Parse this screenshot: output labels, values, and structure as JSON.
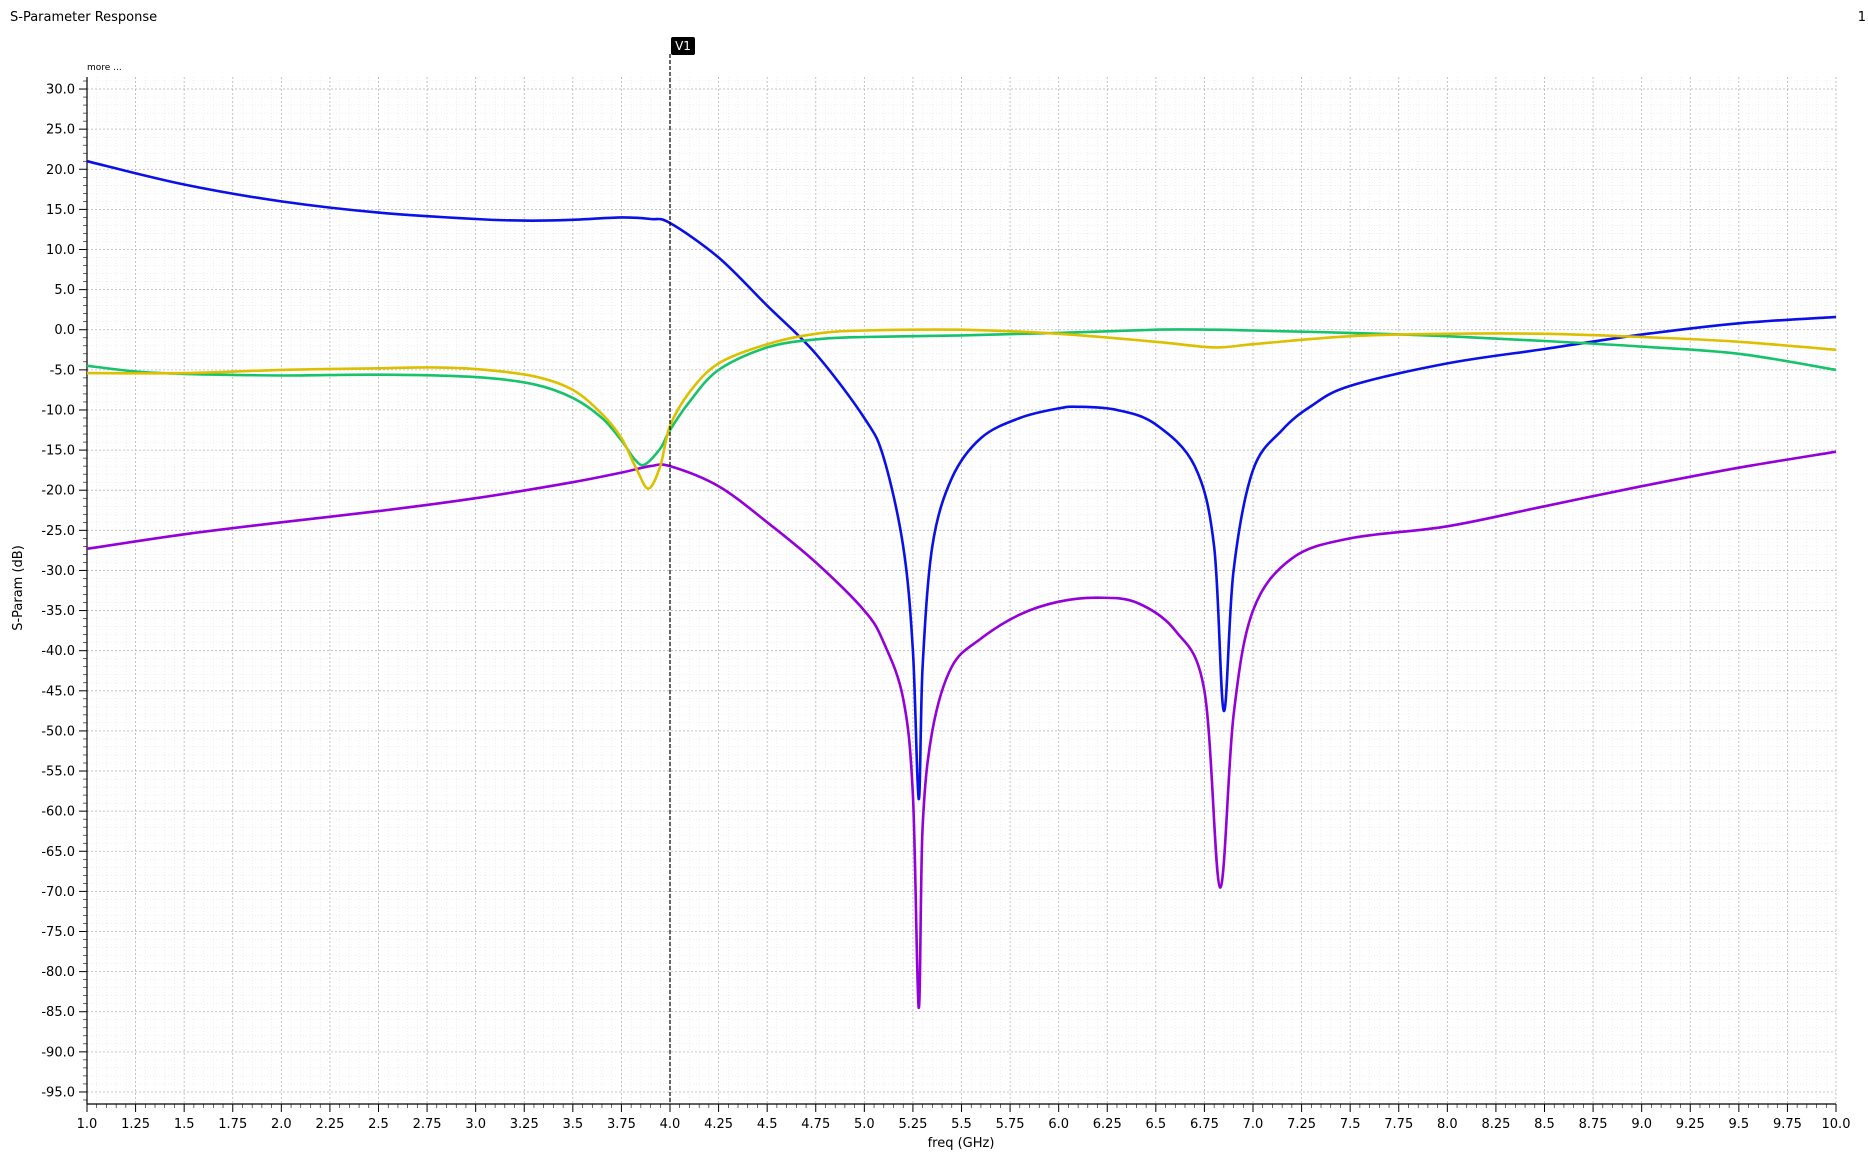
{
  "window": {
    "title": "S-Parameter Response",
    "page_number": "1"
  },
  "more_link": "more ...",
  "marker": {
    "label": "V1",
    "x": 4.0
  },
  "colors": {
    "blue": "#0a10e8",
    "purple": "#9400d9",
    "green": "#16c36a",
    "yellow": "#dcc000",
    "grid": "#b4b4b4",
    "marker": "#000000"
  },
  "chart_data": {
    "type": "line",
    "title": "S-Parameter Response",
    "xlabel": "freq (GHz)",
    "ylabel": "S-Param (dB)",
    "xlim": [
      1.0,
      10.0
    ],
    "ylim": [
      -96.5,
      31.5
    ],
    "grid": true,
    "x_ticks": [
      "1.0",
      "1.25",
      "1.5",
      "1.75",
      "2.0",
      "2.25",
      "2.5",
      "2.75",
      "3.0",
      "3.25",
      "3.5",
      "3.75",
      "4.0",
      "4.25",
      "4.5",
      "4.75",
      "5.0",
      "5.25",
      "5.5",
      "5.75",
      "6.0",
      "6.25",
      "6.5",
      "6.75",
      "7.0",
      "7.25",
      "7.5",
      "7.75",
      "8.0",
      "8.25",
      "8.5",
      "8.75",
      "9.0",
      "9.25",
      "9.5",
      "9.75",
      "10.0"
    ],
    "y_ticks": [
      "30.0",
      "25.0",
      "20.0",
      "15.0",
      "10.0",
      "5.0",
      "0.0",
      "-5.0",
      "-10.0",
      "-15.0",
      "-20.0",
      "-25.0",
      "-30.0",
      "-35.0",
      "-40.0",
      "-45.0",
      "-50.0",
      "-55.0",
      "-60.0",
      "-65.0",
      "-70.0",
      "-75.0",
      "-80.0",
      "-85.0",
      "-90.0",
      "-95.0"
    ],
    "series": [
      {
        "color": "#0a10e8",
        "x": [
          1.0,
          1.5,
          2.0,
          2.5,
          3.0,
          3.25,
          3.5,
          3.75,
          3.9,
          4.0,
          4.25,
          4.5,
          4.75,
          5.0,
          5.1,
          5.2,
          5.25,
          5.28,
          5.3,
          5.35,
          5.45,
          5.6,
          5.8,
          6.0,
          6.1,
          6.3,
          6.5,
          6.7,
          6.8,
          6.85,
          6.9,
          7.0,
          7.15,
          7.3,
          7.5,
          8.0,
          8.5,
          9.0,
          9.5,
          10.0
        ],
        "y": [
          21.0,
          18.1,
          16.0,
          14.6,
          13.8,
          13.6,
          13.7,
          14.0,
          13.8,
          13.3,
          9.0,
          3.0,
          -3.0,
          -11.0,
          -16.0,
          -27.0,
          -40.0,
          -58.5,
          -42.0,
          -27.0,
          -18.5,
          -13.5,
          -11.0,
          -9.8,
          -9.6,
          -10.0,
          -11.8,
          -17.0,
          -27.0,
          -47.5,
          -30.0,
          -17.5,
          -12.5,
          -9.5,
          -7.0,
          -4.2,
          -2.4,
          -0.6,
          0.8,
          1.6
        ]
      },
      {
        "color": "#9400d9",
        "x": [
          1.0,
          1.5,
          2.0,
          2.5,
          3.0,
          3.5,
          3.75,
          3.9,
          4.0,
          4.25,
          4.5,
          4.75,
          5.0,
          5.1,
          5.2,
          5.25,
          5.28,
          5.3,
          5.35,
          5.45,
          5.6,
          5.8,
          6.0,
          6.2,
          6.4,
          6.6,
          6.75,
          6.83,
          6.9,
          7.0,
          7.2,
          7.5,
          8.0,
          8.5,
          9.0,
          9.5,
          10.0
        ],
        "y": [
          -27.3,
          -25.5,
          -24.0,
          -22.6,
          -21.0,
          -19.0,
          -17.8,
          -17.0,
          -17.0,
          -19.5,
          -24.0,
          -29.0,
          -35.0,
          -39.0,
          -46.0,
          -58.0,
          -84.5,
          -62.0,
          -50.0,
          -42.0,
          -38.5,
          -35.5,
          -33.9,
          -33.4,
          -34.0,
          -37.5,
          -45.0,
          -69.5,
          -48.0,
          -35.0,
          -28.5,
          -26.0,
          -24.5,
          -22.0,
          -19.5,
          -17.2,
          -15.2
        ]
      },
      {
        "color": "#16c36a",
        "x": [
          1.0,
          1.25,
          1.5,
          2.0,
          2.5,
          3.0,
          3.3,
          3.5,
          3.65,
          3.75,
          3.82,
          3.87,
          3.95,
          4.0,
          4.1,
          4.25,
          4.5,
          4.75,
          5.0,
          5.5,
          6.0,
          6.5,
          6.8,
          7.0,
          7.5,
          8.0,
          8.5,
          9.0,
          9.5,
          10.0
        ],
        "y": [
          -4.5,
          -5.2,
          -5.5,
          -5.7,
          -5.6,
          -5.9,
          -6.8,
          -8.5,
          -11.0,
          -13.8,
          -16.2,
          -16.8,
          -14.8,
          -12.5,
          -9.0,
          -5.0,
          -2.2,
          -1.2,
          -0.9,
          -0.7,
          -0.4,
          0.0,
          0.0,
          -0.1,
          -0.4,
          -0.8,
          -1.4,
          -2.1,
          -3.0,
          -5.0
        ]
      },
      {
        "color": "#dcc000",
        "x": [
          1.0,
          1.5,
          2.0,
          2.5,
          2.75,
          3.0,
          3.3,
          3.5,
          3.65,
          3.75,
          3.83,
          3.89,
          3.95,
          4.0,
          4.1,
          4.25,
          4.5,
          4.75,
          5.0,
          5.5,
          6.0,
          6.5,
          6.8,
          7.0,
          7.5,
          8.0,
          8.5,
          9.0,
          9.5,
          10.0
        ],
        "y": [
          -5.4,
          -5.4,
          -5.0,
          -4.8,
          -4.7,
          -4.9,
          -5.8,
          -7.5,
          -10.5,
          -13.5,
          -17.5,
          -19.8,
          -17.0,
          -12.0,
          -7.8,
          -4.2,
          -1.8,
          -0.5,
          -0.1,
          0.0,
          -0.5,
          -1.5,
          -2.2,
          -1.8,
          -0.8,
          -0.5,
          -0.5,
          -0.9,
          -1.5,
          -2.5
        ]
      }
    ]
  }
}
